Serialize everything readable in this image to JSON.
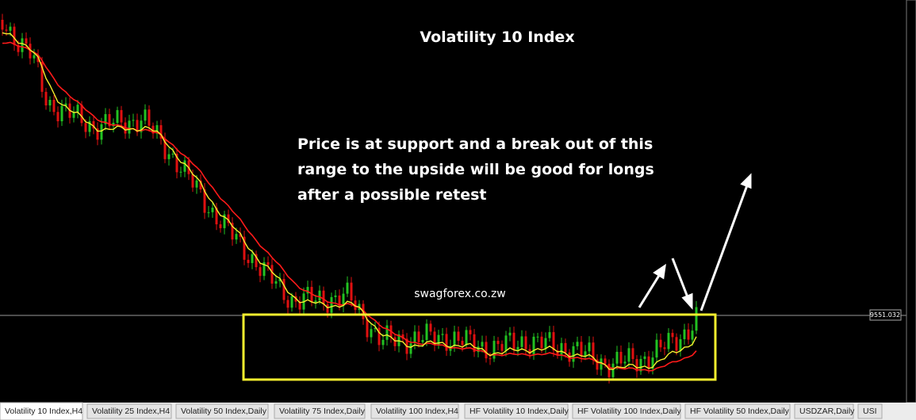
{
  "chart": {
    "title": "Volatility 10 Index",
    "annotation": [
      "Price is at support and a break out of this",
      "range to the upside will be good for longs",
      "after a possible retest"
    ],
    "watermark": "swagforex.co.zw",
    "price_label": "9551.032"
  },
  "tabs": [
    "Volatility 10 Index,H4",
    "Volatility 25 Index,H4",
    "Volatility 50 Index,Daily",
    "Volatility 75 Index,Daily",
    "Volatility 100 Index,H4",
    "HF Volatility 10 Index,Daily",
    "HF Volatility 100 Index,Daily",
    "HF Volatility 50 Index,Daily",
    "USDZAR,Daily",
    "USI"
  ]
}
